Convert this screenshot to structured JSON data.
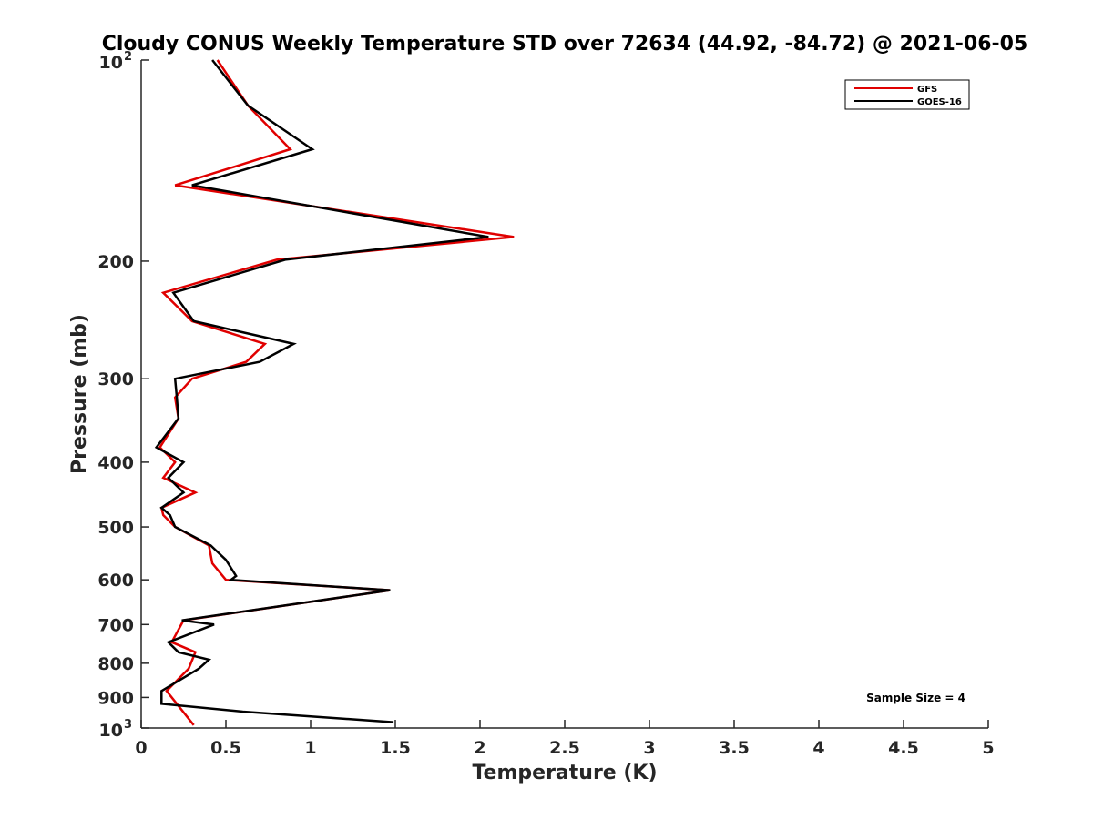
{
  "chart_data": {
    "type": "line",
    "title": "Cloudy CONUS Weekly Temperature STD over 72634 (44.92, -84.72) @ 2021-06-05",
    "xlabel": "Temperature (K)",
    "ylabel": "Pressure (mb)",
    "xlim": [
      0,
      5
    ],
    "ylim": [
      100,
      1000
    ],
    "y_scale": "log",
    "y_reversed": true,
    "grid": false,
    "legend_position": "top-right",
    "x_ticks": [
      "0",
      "0.5",
      "1",
      "1.5",
      "2",
      "2.5",
      "3",
      "3.5",
      "4",
      "4.5",
      "5"
    ],
    "y_ticks": [
      {
        "value": 100,
        "base": "10",
        "exp": "2"
      },
      {
        "value": 200,
        "label": "200"
      },
      {
        "value": 300,
        "label": "300"
      },
      {
        "value": 400,
        "label": "400"
      },
      {
        "value": 500,
        "label": "500"
      },
      {
        "value": 600,
        "label": "600"
      },
      {
        "value": 700,
        "label": "700"
      },
      {
        "value": 800,
        "label": "800"
      },
      {
        "value": 900,
        "label": "900"
      },
      {
        "value": 1000,
        "base": "10",
        "exp": "3"
      }
    ],
    "annotation": "Sample Size = 4",
    "series": [
      {
        "name": "GFS",
        "color": "#e00000",
        "points": [
          [
            0.45,
            100
          ],
          [
            0.63,
            117
          ],
          [
            0.88,
            136
          ],
          [
            0.2,
            154
          ],
          [
            2.2,
            184
          ],
          [
            0.8,
            199
          ],
          [
            0.13,
            223
          ],
          [
            0.3,
            246
          ],
          [
            0.73,
            266
          ],
          [
            0.62,
            283
          ],
          [
            0.3,
            300
          ],
          [
            0.2,
            320
          ],
          [
            0.22,
            344
          ],
          [
            0.11,
            380
          ],
          [
            0.2,
            400
          ],
          [
            0.13,
            422
          ],
          [
            0.32,
            444
          ],
          [
            0.12,
            468
          ],
          [
            0.13,
            480
          ],
          [
            0.2,
            500
          ],
          [
            0.4,
            533
          ],
          [
            0.42,
            567
          ],
          [
            0.5,
            600
          ],
          [
            1.47,
            622
          ],
          [
            0.25,
            690
          ],
          [
            0.18,
            744
          ],
          [
            0.32,
            770
          ],
          [
            0.28,
            815
          ],
          [
            0.15,
            880
          ],
          [
            0.31,
            990
          ]
        ]
      },
      {
        "name": "GOES-16",
        "color": "#000000",
        "points": [
          [
            0.42,
            100
          ],
          [
            0.63,
            117
          ],
          [
            1.01,
            136
          ],
          [
            0.3,
            154
          ],
          [
            2.05,
            184
          ],
          [
            0.85,
            199
          ],
          [
            0.19,
            223
          ],
          [
            0.31,
            246
          ],
          [
            0.9,
            266
          ],
          [
            0.7,
            283
          ],
          [
            0.2,
            300
          ],
          [
            0.21,
            320
          ],
          [
            0.22,
            344
          ],
          [
            0.09,
            380
          ],
          [
            0.25,
            400
          ],
          [
            0.16,
            422
          ],
          [
            0.25,
            444
          ],
          [
            0.12,
            468
          ],
          [
            0.17,
            480
          ],
          [
            0.2,
            500
          ],
          [
            0.41,
            533
          ],
          [
            0.5,
            560
          ],
          [
            0.56,
            592
          ],
          [
            0.53,
            600
          ],
          [
            1.47,
            622
          ],
          [
            0.24,
            690
          ],
          [
            0.43,
            700
          ],
          [
            0.16,
            744
          ],
          [
            0.22,
            770
          ],
          [
            0.4,
            790
          ],
          [
            0.34,
            815
          ],
          [
            0.12,
            880
          ],
          [
            0.12,
            920
          ],
          [
            0.6,
            945
          ],
          [
            1.49,
            980
          ]
        ]
      }
    ]
  }
}
